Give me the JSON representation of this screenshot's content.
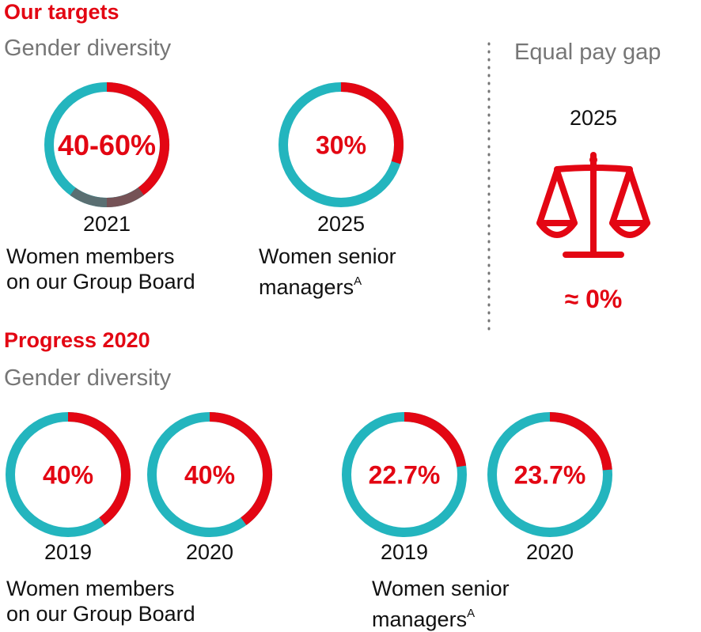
{
  "colors": {
    "red": "#e30613",
    "teal": "#23b5be",
    "grey": "#767676",
    "dark": "#111111",
    "transition": "#5a6f72"
  },
  "targets": {
    "heading": "Our targets",
    "subheading": "Gender diversity",
    "board": {
      "year": "2021",
      "caption_line1": "Women members",
      "caption_line2": "on our Group Board"
    },
    "managers": {
      "year": "2025",
      "caption_line1": "Women senior",
      "caption_line2": "managers",
      "footnote_marker": "A"
    }
  },
  "equal_pay": {
    "heading": "Equal pay gap",
    "year": "2025",
    "icon": "scales-icon",
    "value": "≈ 0%"
  },
  "progress": {
    "heading": "Progress 2020",
    "subheading": "Gender diversity",
    "board": {
      "caption_line1": "Women members",
      "caption_line2": "on our Group Board"
    },
    "managers": {
      "caption_line1": "Women senior",
      "caption_line2": "managers",
      "footnote_marker": "A"
    }
  },
  "chart_data": [
    {
      "type": "pie",
      "style": "donut",
      "title": "Women members on our Group Board",
      "period": "2021",
      "label": "40-60%",
      "range": [
        40,
        60
      ],
      "unit": "%",
      "note": "target"
    },
    {
      "type": "pie",
      "style": "donut",
      "title": "Women senior managers",
      "period": "2025",
      "label": "30%",
      "value": 30,
      "unit": "%",
      "note": "target"
    },
    {
      "type": "pie",
      "style": "donut",
      "title": "Women members on our Group Board",
      "period": "2019",
      "label": "40%",
      "value": 40,
      "unit": "%",
      "note": "progress"
    },
    {
      "type": "pie",
      "style": "donut",
      "title": "Women members on our Group Board",
      "period": "2020",
      "label": "40%",
      "value": 40,
      "unit": "%",
      "note": "progress"
    },
    {
      "type": "pie",
      "style": "donut",
      "title": "Women senior managers",
      "period": "2019",
      "label": "22.7%",
      "value": 22.7,
      "unit": "%",
      "note": "progress"
    },
    {
      "type": "pie",
      "style": "donut",
      "title": "Women senior managers",
      "period": "2020",
      "label": "23.7%",
      "value": 23.7,
      "unit": "%",
      "note": "progress"
    }
  ]
}
